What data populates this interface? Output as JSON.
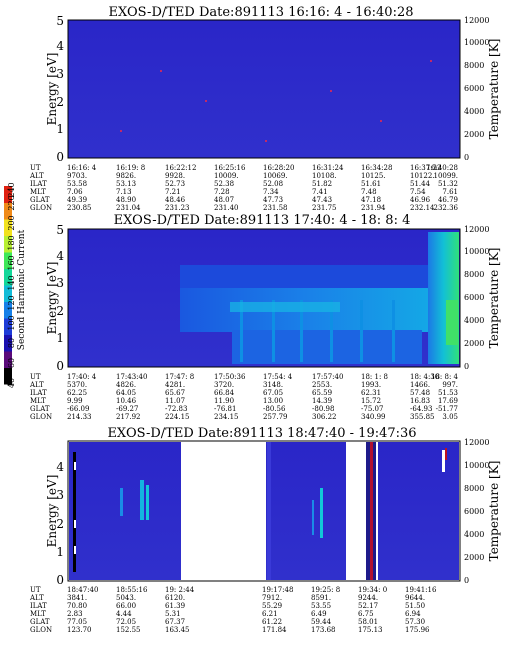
{
  "colorbar": {
    "label": "Second Harmonic Current",
    "ticks": [
      "40",
      "60",
      "80",
      "100",
      "120",
      "140",
      "160",
      "180",
      "200",
      "220",
      "240"
    ],
    "colors": [
      "#000000",
      "#5a0a7a",
      "#1a10b0",
      "#1e3cd8",
      "#1680e8",
      "#12bcd8",
      "#14d89a",
      "#3ee858",
      "#b8f032",
      "#f2e21e",
      "#f08a18",
      "#e02010"
    ]
  },
  "panels": [
    {
      "title": "EXOS-D/TED   Date:891113  16:16: 4 - 16:40:28",
      "ylabel": "Energy [eV]",
      "y2label": "Temperature [K]",
      "ytick_labels": [
        "0",
        "1",
        "2",
        "3",
        "4",
        "5"
      ],
      "y2tick_labels": [
        "0",
        "2000",
        "4000",
        "6000",
        "8000",
        "10000",
        "12000"
      ],
      "row_labels": [
        "UT",
        "ALT",
        "ILAT",
        "MLT",
        "GLAT",
        "GLON"
      ],
      "columns": [
        [
          "16:16: 4",
          "9703.",
          "53.58",
          "7.06",
          "49.39",
          "230.85"
        ],
        [
          "16:19: 8",
          "9826.",
          "53.13",
          "7.13",
          "48.90",
          "231.04"
        ],
        [
          "16:22:12",
          "9928.",
          "52.73",
          "7.21",
          "48.46",
          "231.23"
        ],
        [
          "16:25:16",
          "10009.",
          "52.38",
          "7.28",
          "48.07",
          "231.40"
        ],
        [
          "16:28:20",
          "10069.",
          "52.08",
          "7.34",
          "47.73",
          "231.58"
        ],
        [
          "16:31:24",
          "10108.",
          "51.82",
          "7.41",
          "47.43",
          "231.75"
        ],
        [
          "16:34:28",
          "10125.",
          "51.61",
          "7.48",
          "47.18",
          "231.94"
        ],
        [
          "16:37:32",
          "10122.",
          "51.44",
          "7.54",
          "46.96",
          "232.14"
        ],
        [
          "16:40:28",
          "10099.",
          "51.32",
          "7.61",
          "46.79",
          "232.36"
        ]
      ]
    },
    {
      "title": "EXOS-D/TED   Date:891113  17:40: 4 - 18: 8: 4",
      "ylabel": "Energy [eV]",
      "y2label": "Temperature [K]",
      "ytick_labels": [
        "0",
        "1",
        "2",
        "3",
        "4",
        "5"
      ],
      "y2tick_labels": [
        "0",
        "2000",
        "4000",
        "6000",
        "8000",
        "10000",
        "12000"
      ],
      "row_labels": [
        "UT",
        "ALT",
        "ILAT",
        "MLT",
        "GLAT",
        "GLON"
      ],
      "columns": [
        [
          "17:40: 4",
          "5370.",
          "62.25",
          "9.99",
          "-66.09",
          "214.33"
        ],
        [
          "17:43:40",
          "4826.",
          "64.05",
          "10.46",
          "-69.27",
          "217.92"
        ],
        [
          "17:47: 8",
          "4281.",
          "65.67",
          "11.07",
          "-72.83",
          "224.15"
        ],
        [
          "17:50:36",
          "3720.",
          "66.84",
          "11.90",
          "-76.81",
          "234.15"
        ],
        [
          "17:54: 4",
          "3148.",
          "67.05",
          "13.00",
          "-80.56",
          "257.79"
        ],
        [
          "17:57:40",
          "2553.",
          "65.59",
          "14.39",
          "-80.98",
          "306.22"
        ],
        [
          "18: 1: 8",
          "1993.",
          "62.31",
          "15.72",
          "-75.07",
          "340.99"
        ],
        [
          "18: 4:36",
          "1466.",
          "57.48",
          "16.83",
          "-64.93",
          "355.85"
        ],
        [
          "18: 8: 4",
          "997.",
          "51.53",
          "17.69",
          "-51.77",
          "3.05"
        ]
      ]
    },
    {
      "title": "EXOS-D/TED   Date:891113  18:47:40 - 19:47:36",
      "ylabel": "Energy [eV]",
      "y2label": "Temperature [K]",
      "ytick_labels": [
        "0",
        "1",
        "2",
        "3",
        "4"
      ],
      "y2tick_labels": [
        "0",
        "2000",
        "4000",
        "6000",
        "8000",
        "10000",
        "12000"
      ],
      "row_labels": [
        "UT",
        "ALT",
        "ILAT",
        "MLT",
        "GLAT",
        "GLON"
      ],
      "columns": [
        [
          "18:47:40",
          "3841.",
          "70.80",
          "2.83",
          "77.05",
          "123.70"
        ],
        [
          "18:55:16",
          "5043.",
          "66.00",
          "4.44",
          "72.05",
          "152.55"
        ],
        [
          "19: 2:44",
          "6120.",
          "61.39",
          "5.31",
          "67.37",
          "163.45"
        ],
        [
          "19:17:48",
          "7912.",
          "55.29",
          "6.21",
          "61.22",
          "171.84"
        ],
        [
          "19:25: 8",
          "8591.",
          "53.55",
          "6.49",
          "59.44",
          "173.68"
        ],
        [
          "19:34: 0",
          "9244.",
          "52.17",
          "6.75",
          "58.01",
          "175.13"
        ],
        [
          "19:41:16",
          "9644.",
          "51.50",
          "6.94",
          "57.30",
          "175.96"
        ]
      ]
    }
  ]
}
